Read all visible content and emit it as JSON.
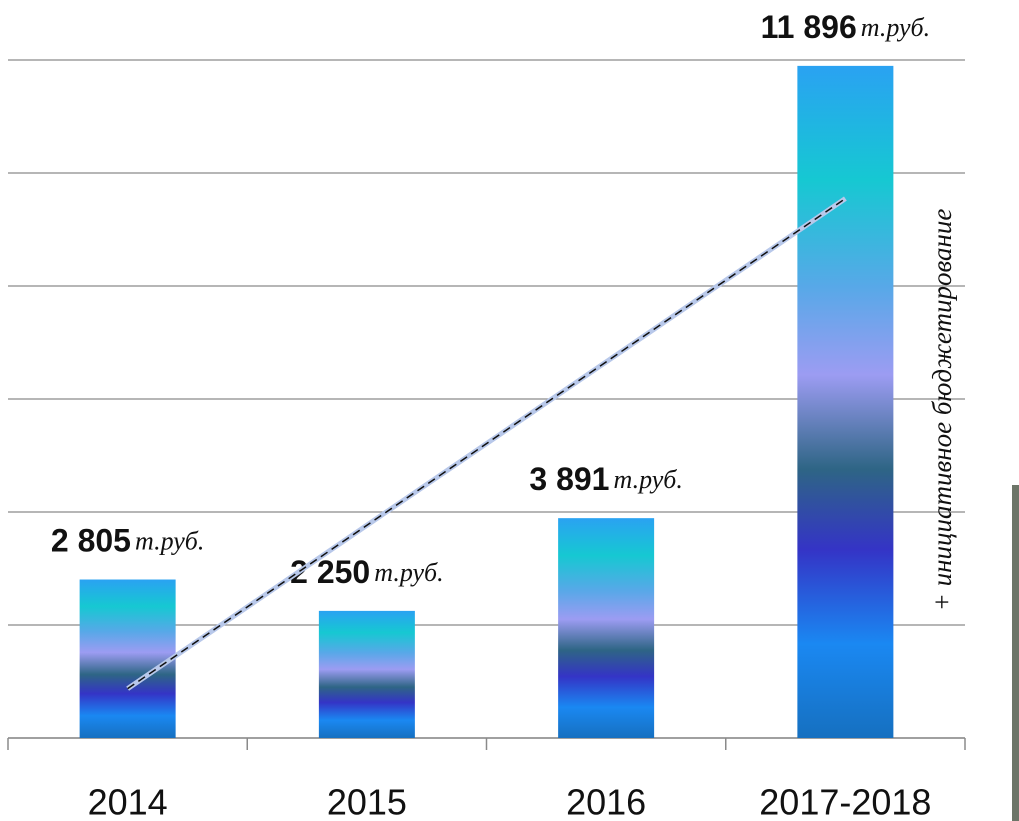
{
  "chart_data": {
    "type": "bar",
    "categories": [
      "2014",
      "2015",
      "2016",
      "2017-2018"
    ],
    "values": [
      2805,
      2250,
      3891,
      11896
    ],
    "value_labels": [
      "2 805",
      "2 250",
      "3 891",
      "11 896"
    ],
    "unit": "т.руб.",
    "annotation": "+ инициативное бюджетирование",
    "ylim": [
      0,
      12000
    ],
    "yticks": [
      0,
      2000,
      4000,
      6000,
      8000,
      10000,
      12000
    ],
    "grid": true,
    "trendline": "linear"
  }
}
